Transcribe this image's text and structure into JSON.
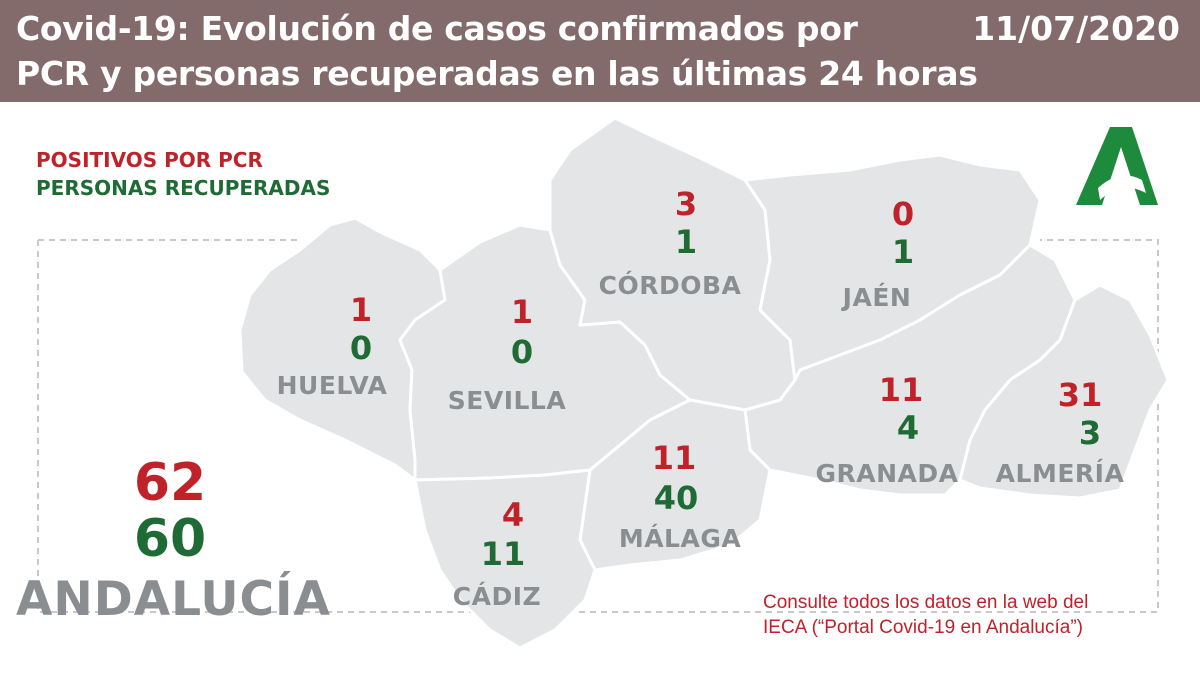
{
  "header": {
    "title_line1": "Covid-19: Evolución de casos confirmados por",
    "title_line2": "PCR y personas recuperadas en las últimas 24 horas",
    "date": "11/07/2020"
  },
  "legend": {
    "pcr_label": "POSITIVOS POR PCR",
    "recovered_label": "PERSONAS RECUPERADAS"
  },
  "provinces": [
    {
      "name": "HUELVA",
      "pcr": "1",
      "recovered": "0"
    },
    {
      "name": "SEVILLA",
      "pcr": "1",
      "recovered": "0"
    },
    {
      "name": "CÓRDOBA",
      "pcr": "3",
      "recovered": "1"
    },
    {
      "name": "JAÉN",
      "pcr": "0",
      "recovered": "1"
    },
    {
      "name": "GRANADA",
      "pcr": "11",
      "recovered": "4"
    },
    {
      "name": "ALMERÍA",
      "pcr": "31",
      "recovered": "3"
    },
    {
      "name": "MÁLAGA",
      "pcr": "11",
      "recovered": "40"
    },
    {
      "name": "CÁDIZ",
      "pcr": "4",
      "recovered": "11"
    }
  ],
  "region": {
    "name": "ANDALUCÍA",
    "pcr": "62",
    "recovered": "60"
  },
  "footer_note": {
    "line1": "Consulte todos los datos en la web del",
    "line2": "IECA (“Portal Covid-19 en Andalucía”)"
  },
  "colors": {
    "header_bg": "#836a6b",
    "pcr": "#c0222a",
    "recovered": "#1e6b35",
    "map_fill": "#e4e5e6",
    "province_label": "#8a8e91",
    "logo": "#1d8a3c"
  },
  "icons": {
    "logo": "junta-andalucia-logo"
  }
}
